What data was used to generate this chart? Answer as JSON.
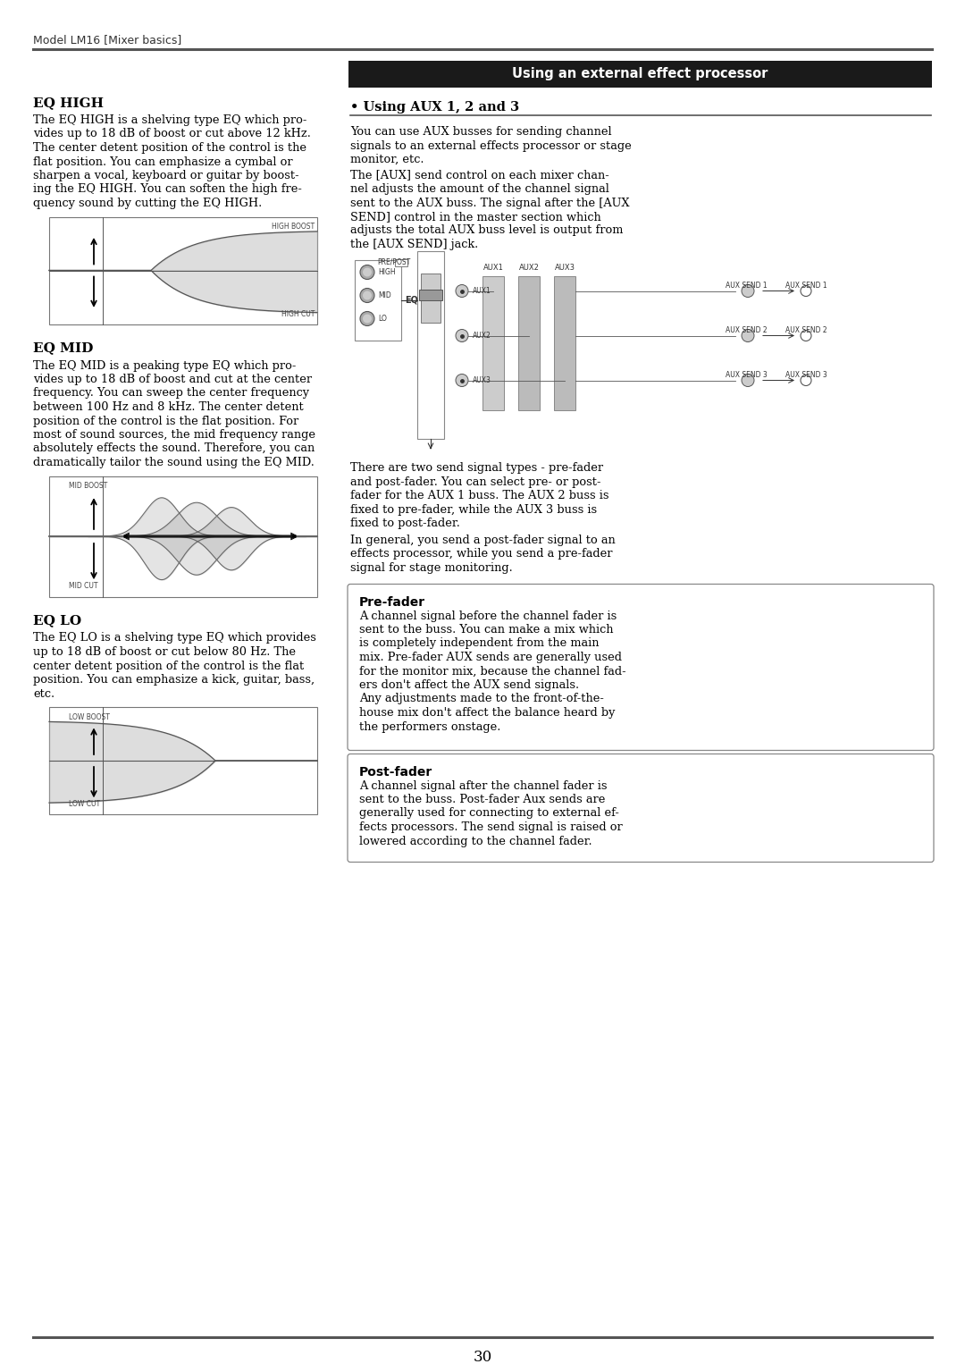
{
  "page_title": "Model LM16 [Mixer basics]",
  "page_number": "30",
  "bg": "#ffffff",
  "header_line_color": "#555555",
  "right_header_bg": "#1a1a1a",
  "right_header_text": "Using an external effect processor",
  "right_header_text_color": "#ffffff",
  "eq_high_title": "EQ HIGH",
  "eq_mid_title": "EQ MID",
  "eq_lo_title": "EQ LO",
  "aux_subtitle": "• Using AUX 1, 2 and 3",
  "prefader_title": "Pre-fader",
  "postfader_title": "Post-fader",
  "high_boost_label": "HIGH BOOST",
  "high_cut_label": "HIGH CUT",
  "mid_boost_label": "MID BOOST",
  "mid_cut_label": "MID CUT",
  "low_boost_label": "LOW BOOST",
  "low_cut_label": "LOW CUT",
  "eq_high_lines": [
    "The EQ HIGH is a shelving type EQ which pro-",
    "vides up to 18 dB of boost or cut above 12 kHz.",
    "The center detent position of the control is the",
    "flat position. You can emphasize a cymbal or",
    "sharpen a vocal, keyboard or guitar by boost-",
    "ing the EQ HIGH. You can soften the high fre-",
    "quency sound by cutting the EQ HIGH."
  ],
  "eq_mid_lines": [
    "The EQ MID is a peaking type EQ which pro-",
    "vides up to 18 dB of boost and cut at the center",
    "frequency. You can sweep the center frequency",
    "between 100 Hz and 8 kHz. The center detent",
    "position of the control is the flat position. For",
    "most of sound sources, the mid frequency range",
    "absolutely effects the sound. Therefore, you can",
    "dramatically tailor the sound using the EQ MID."
  ],
  "eq_lo_lines": [
    "The EQ LO is a shelving type EQ which provides",
    "up to 18 dB of boost or cut below 80 Hz. The",
    "center detent position of the control is the flat",
    "position. You can emphasize a kick, guitar, bass,",
    "etc."
  ],
  "aux1_lines": [
    "You can use AUX busses for sending channel",
    "signals to an external effects processor or stage",
    "monitor, etc."
  ],
  "aux2_lines": [
    "The [AUX] send control on each mixer chan-",
    "nel adjusts the amount of the channel signal",
    "sent to the AUX buss. The signal after the [AUX",
    "SEND] control in the master section which",
    "adjusts the total AUX buss level is output from",
    "the [AUX SEND] jack."
  ],
  "aux3_lines": [
    "There are two send signal types - pre-fader",
    "and post-fader. You can select pre- or post-",
    "fader for the AUX 1 buss. The AUX 2 buss is",
    "fixed to pre-fader, while the AUX 3 buss is",
    "fixed to post-fader."
  ],
  "aux4_lines": [
    "In general, you send a post-fader signal to an",
    "effects processor, while you send a pre-fader",
    "signal for stage monitoring."
  ],
  "pf_lines": [
    "A channel signal before the channel fader is",
    "sent to the buss. You can make a mix which",
    "is completely independent from the main",
    "mix. Pre-fader AUX sends are generally used",
    "for the monitor mix, because the channel fad-",
    "ers don't affect the AUX send signals.",
    "Any adjustments made to the front-of-the-",
    "house mix don't affect the balance heard by",
    "the performers onstage."
  ],
  "post_lines": [
    "A channel signal after the channel fader is",
    "sent to the buss. Post-fader Aux sends are",
    "generally used for connecting to external ef-",
    "fects processors. The send signal is raised or",
    "lowered according to the channel fader."
  ]
}
